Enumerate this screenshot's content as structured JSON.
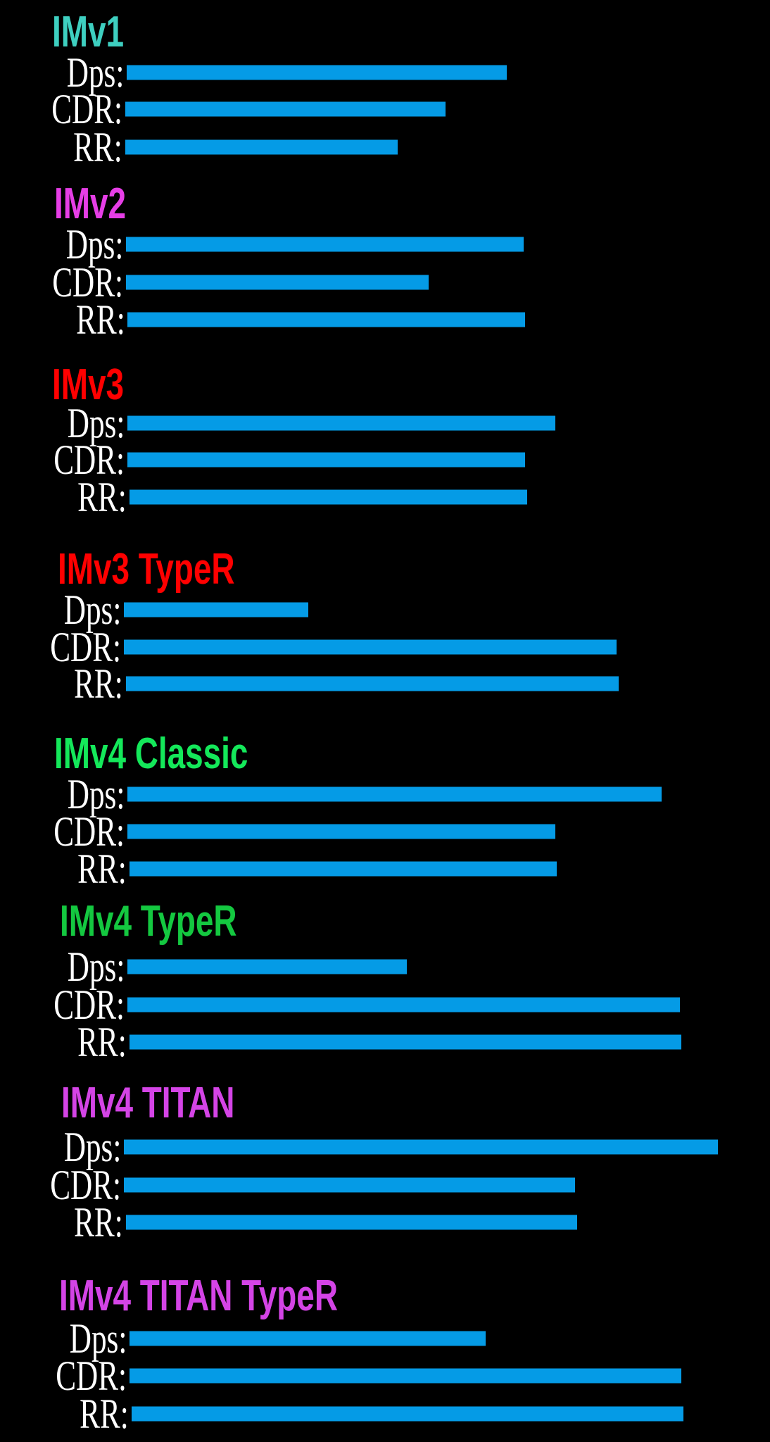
{
  "chart_data": {
    "type": "bar",
    "orientation": "horizontal",
    "scale_note_visible": false,
    "bar_color": "#059be6",
    "metrics": [
      "Dps:",
      "CDR:",
      "RR:"
    ],
    "value_units": "relative length (longest bar = 100)",
    "groups": [
      {
        "title": "IMv1",
        "color": "#3ecfc0",
        "values": [
          64,
          54,
          46
        ]
      },
      {
        "title": "IMv2",
        "color": "#e63ee6",
        "values": [
          67,
          51,
          67
        ]
      },
      {
        "title": "IMv3",
        "color": "#ff0000",
        "values": [
          72,
          67,
          67
        ]
      },
      {
        "title": "IMv3 TypeR",
        "color": "#ff0000",
        "values": [
          31,
          83,
          83
        ]
      },
      {
        "title": "IMv4 Classic",
        "color": "#14e85a",
        "values": [
          90,
          72,
          72
        ]
      },
      {
        "title": "IMv4 TypeR",
        "color": "#14c840",
        "values": [
          47,
          93,
          93
        ]
      },
      {
        "title": "IMv4 TITAN",
        "color": "#d444e6",
        "values": [
          100,
          76,
          76
        ]
      },
      {
        "title": "IMv4 TITAN TypeR",
        "color": "#d444e6",
        "values": [
          60,
          93,
          93
        ]
      }
    ]
  }
}
